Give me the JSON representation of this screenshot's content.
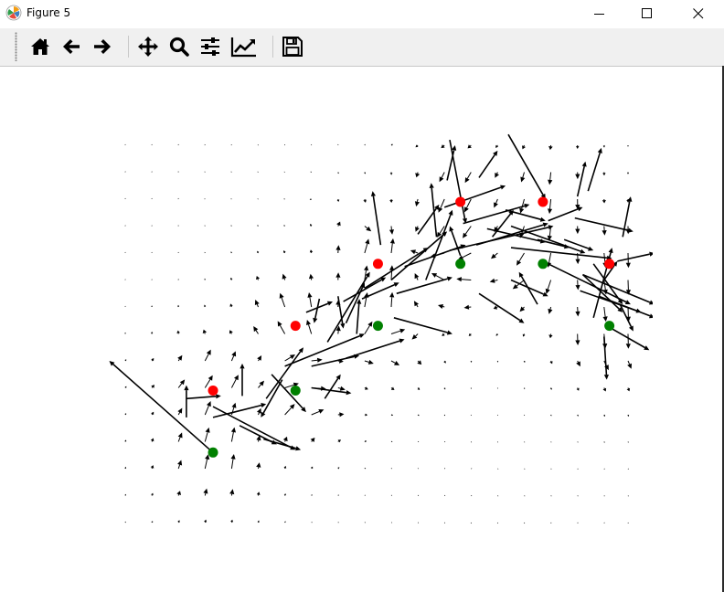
{
  "window": {
    "title": "Figure 5",
    "app_icon": "matplotlib-icon",
    "controls": [
      "minimize-icon",
      "maximize-icon",
      "close-icon"
    ]
  },
  "toolbar": {
    "buttons": [
      {
        "name": "home-button",
        "icon": "home-icon"
      },
      {
        "name": "back-button",
        "icon": "arrow-left-icon"
      },
      {
        "name": "forward-button",
        "icon": "arrow-right-icon"
      },
      {
        "name": "pan-button",
        "icon": "move-icon"
      },
      {
        "name": "zoom-button",
        "icon": "magnifier-icon"
      },
      {
        "name": "subplots-button",
        "icon": "sliders-icon"
      },
      {
        "name": "edit-axes-button",
        "icon": "line-chart-icon"
      },
      {
        "name": "save-button",
        "icon": "floppy-disk-icon"
      }
    ]
  },
  "chart_data": {
    "type": "quiver",
    "grid": {
      "columns": 20,
      "rows": 15
    },
    "axes_visible": false,
    "colors": {
      "arrow": "#000000",
      "red_points": "#ff0000",
      "green_points": "#008000"
    },
    "red_points": [
      [
        3.3,
        4.9
      ],
      [
        6.4,
        7.3
      ],
      [
        9.5,
        9.6
      ],
      [
        12.6,
        11.9
      ],
      [
        15.7,
        11.9
      ],
      [
        18.2,
        9.6
      ]
    ],
    "green_points": [
      [
        3.3,
        2.6
      ],
      [
        6.4,
        4.9
      ],
      [
        9.5,
        7.3
      ],
      [
        12.6,
        9.6
      ],
      [
        15.7,
        9.6
      ],
      [
        18.2,
        7.3
      ]
    ],
    "highlight_vectors": [
      {
        "x": 3.3,
        "y": 2.6,
        "u": -3.9,
        "v": 3.4
      },
      {
        "x": 2.3,
        "y": 3.9,
        "u": 0.0,
        "v": 1.2
      },
      {
        "x": 3.3,
        "y": 3.9,
        "u": 2.0,
        "v": 0.5
      },
      {
        "x": 4.3,
        "y": 3.6,
        "u": 1.4,
        "v": -0.7
      },
      {
        "x": 3.3,
        "y": 4.3,
        "u": 3.1,
        "v": -1.6
      },
      {
        "x": 2.3,
        "y": 4.6,
        "u": 1.3,
        "v": 0.1
      },
      {
        "x": 5.2,
        "y": 3.1,
        "u": 1.4,
        "v": -0.4
      },
      {
        "x": 4.4,
        "y": 4.7,
        "u": 0.0,
        "v": 1.2
      },
      {
        "x": 5.3,
        "y": 4.6,
        "u": 1.4,
        "v": 1.9
      },
      {
        "x": 5.5,
        "y": 5.5,
        "u": 1.3,
        "v": -1.4
      },
      {
        "x": 5.9,
        "y": 5.3,
        "u": -0.8,
        "v": -1.4
      },
      {
        "x": 6.0,
        "y": 5.8,
        "u": 3.0,
        "v": 1.2
      },
      {
        "x": 7.0,
        "y": 5.8,
        "u": 1.8,
        "v": 0.4
      },
      {
        "x": 7.0,
        "y": 5.0,
        "u": 1.5,
        "v": -0.2
      },
      {
        "x": 7.6,
        "y": 6.7,
        "u": 1.6,
        "v": 2.6
      },
      {
        "x": 8.3,
        "y": 6.1,
        "u": 2.2,
        "v": 0.7
      },
      {
        "x": 7.5,
        "y": 4.6,
        "u": 0.6,
        "v": 0.9
      },
      {
        "x": 6.8,
        "y": 7.8,
        "u": 1.0,
        "v": 0.4
      },
      {
        "x": 7.3,
        "y": 8.3,
        "u": -0.2,
        "v": -0.9
      },
      {
        "x": 8.0,
        "y": 8.4,
        "u": 0.2,
        "v": -1.2
      },
      {
        "x": 8.3,
        "y": 7.4,
        "u": 0.7,
        "v": 1.5
      },
      {
        "x": 8.7,
        "y": 7.0,
        "u": 0.1,
        "v": 1.3
      },
      {
        "x": 8.2,
        "y": 8.2,
        "u": 1.6,
        "v": 0.9
      },
      {
        "x": 8.9,
        "y": 8.3,
        "u": 1.4,
        "v": 0.6
      },
      {
        "x": 10.1,
        "y": 7.6,
        "u": 2.2,
        "v": -0.6
      },
      {
        "x": 9.6,
        "y": 10.3,
        "u": -0.3,
        "v": 2.0
      },
      {
        "x": 9.0,
        "y": 8.7,
        "u": 2.4,
        "v": 1.5
      },
      {
        "x": 10.2,
        "y": 8.5,
        "u": 2.1,
        "v": 0.6
      },
      {
        "x": 10.0,
        "y": 9.0,
        "u": 2.1,
        "v": 1.8
      },
      {
        "x": 11.3,
        "y": 9.0,
        "u": 1.0,
        "v": 2.6
      },
      {
        "x": 10.5,
        "y": 9.5,
        "u": 2.3,
        "v": 0.8
      },
      {
        "x": 11.7,
        "y": 10.6,
        "u": -0.2,
        "v": 2.0
      },
      {
        "x": 11.0,
        "y": 10.7,
        "u": 0.8,
        "v": 1.1
      },
      {
        "x": 12.2,
        "y": 10.1,
        "u": 3.9,
        "v": 0.9
      },
      {
        "x": 13.2,
        "y": 10.3,
        "u": 2.7,
        "v": 0.8
      },
      {
        "x": 13.8,
        "y": 10.6,
        "u": 0.8,
        "v": 1.0
      },
      {
        "x": 12.6,
        "y": 9.9,
        "u": -0.4,
        "v": 1.1
      },
      {
        "x": 12.7,
        "y": 11.1,
        "u": 2.5,
        "v": 0.7
      },
      {
        "x": 12.0,
        "y": 11.7,
        "u": 2.3,
        "v": 0.8
      },
      {
        "x": 12.1,
        "y": 12.7,
        "u": 0.3,
        "v": 1.3
      },
      {
        "x": 12.2,
        "y": 14.2,
        "u": 0.6,
        "v": -3.1
      },
      {
        "x": 14.4,
        "y": 14.4,
        "u": 1.4,
        "v": -2.4
      },
      {
        "x": 13.6,
        "y": 10.9,
        "u": 2.2,
        "v": -0.5
      },
      {
        "x": 13.3,
        "y": 12.8,
        "u": 0.7,
        "v": 1.0
      },
      {
        "x": 14.3,
        "y": 11.6,
        "u": 1.5,
        "v": -0.4
      },
      {
        "x": 14.5,
        "y": 11.0,
        "u": 2.8,
        "v": -1.0
      },
      {
        "x": 14.5,
        "y": 10.2,
        "u": 3.8,
        "v": -0.4
      },
      {
        "x": 15.5,
        "y": 10.5,
        "u": 1.2,
        "v": -0.3
      },
      {
        "x": 15.9,
        "y": 11.2,
        "u": 1.3,
        "v": 0.5
      },
      {
        "x": 16.9,
        "y": 11.3,
        "u": 2.2,
        "v": -0.5
      },
      {
        "x": 17.0,
        "y": 12.1,
        "u": 0.3,
        "v": 1.3
      },
      {
        "x": 16.5,
        "y": 10.5,
        "u": 1.1,
        "v": -0.4
      },
      {
        "x": 13.3,
        "y": 8.5,
        "u": 1.7,
        "v": -1.1
      },
      {
        "x": 14.5,
        "y": 9.0,
        "u": 1.4,
        "v": -0.6
      },
      {
        "x": 15.5,
        "y": 8.1,
        "u": -0.7,
        "v": 1.2
      },
      {
        "x": 15.9,
        "y": 9.6,
        "u": 3.1,
        "v": -1.5
      },
      {
        "x": 17.1,
        "y": 8.6,
        "u": 2.3,
        "v": -0.8
      },
      {
        "x": 17.2,
        "y": 9.2,
        "u": 1.5,
        "v": -1.4
      },
      {
        "x": 17.2,
        "y": 9.2,
        "u": 2.7,
        "v": -1.1
      },
      {
        "x": 17.8,
        "y": 8.4,
        "u": 2.1,
        "v": -0.8
      },
      {
        "x": 17.6,
        "y": 9.6,
        "u": 1.1,
        "v": -1.5
      },
      {
        "x": 17.6,
        "y": 7.6,
        "u": 0.7,
        "v": 2.6
      },
      {
        "x": 18.0,
        "y": 9.0,
        "u": 0.5,
        "v": 0.7
      },
      {
        "x": 18.6,
        "y": 8.1,
        "u": 0.5,
        "v": -1.0
      },
      {
        "x": 18.0,
        "y": 6.9,
        "u": 0.1,
        "v": -1.6
      },
      {
        "x": 18.5,
        "y": 9.7,
        "u": 1.4,
        "v": 0.3
      },
      {
        "x": 18.7,
        "y": 10.6,
        "u": 0.3,
        "v": 1.5
      },
      {
        "x": 17.4,
        "y": 12.3,
        "u": 0.5,
        "v": 1.6
      },
      {
        "x": 18.1,
        "y": 7.3,
        "u": 1.6,
        "v": -0.9
      }
    ]
  }
}
